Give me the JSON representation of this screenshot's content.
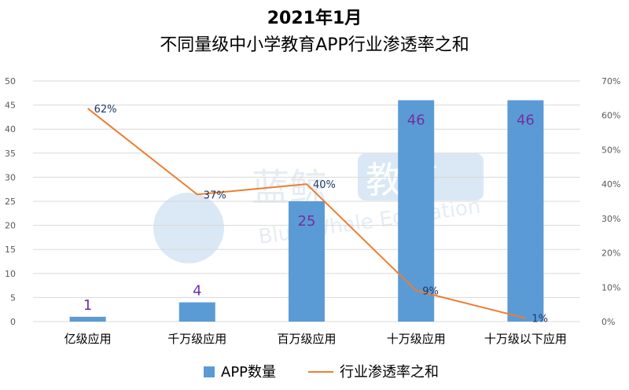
{
  "chart_data": {
    "type": "bar",
    "title_line1": "2021年1月",
    "title_line2": "不同量级中小学教育APP行业渗透率之和",
    "categories": [
      "亿级应用",
      "千万级应用",
      "百万级应用",
      "十万级应用",
      "十万级以下应用"
    ],
    "series": [
      {
        "name": "APP数量",
        "type": "bar",
        "axis": "left",
        "values": [
          1,
          4,
          25,
          46,
          46
        ]
      },
      {
        "name": "行业渗透率之和",
        "type": "line",
        "axis": "right",
        "values": [
          62,
          37,
          40,
          9,
          1
        ]
      }
    ],
    "bar_labels": [
      "1",
      "4",
      "25",
      "46",
      "46"
    ],
    "line_labels": [
      "62%",
      "37%",
      "40%",
      "9%",
      "1%"
    ],
    "y_left": {
      "min": 0,
      "max": 50,
      "ticks": [
        "0",
        "5",
        "10",
        "15",
        "20",
        "25",
        "30",
        "35",
        "40",
        "45",
        "50"
      ]
    },
    "y_right": {
      "min": 0,
      "max": 70,
      "ticks": [
        "0%",
        "10%",
        "20%",
        "30%",
        "40%",
        "50%",
        "60%",
        "70%"
      ]
    },
    "grid": true,
    "legend_position": "bottom",
    "watermark": {
      "cn": "蓝鲸",
      "cn2": "教育",
      "en": "Blue Whale Education"
    }
  },
  "colors": {
    "bar": "#5b9bd5",
    "line": "#ed7d31",
    "bar_label": "#7030a0",
    "line_label": "#1f3864",
    "grid": "#d9d9d9",
    "axis_text": "#595959"
  }
}
